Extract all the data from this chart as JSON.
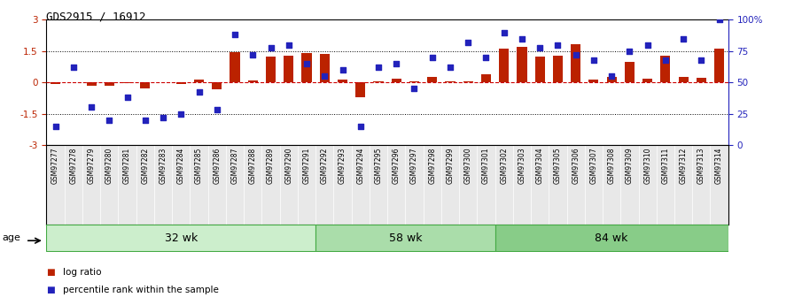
{
  "title": "GDS2915 / 16912",
  "samples": [
    "GSM97277",
    "GSM97278",
    "GSM97279",
    "GSM97280",
    "GSM97281",
    "GSM97282",
    "GSM97283",
    "GSM97284",
    "GSM97285",
    "GSM97286",
    "GSM97287",
    "GSM97288",
    "GSM97289",
    "GSM97290",
    "GSM97291",
    "GSM97292",
    "GSM97293",
    "GSM97294",
    "GSM97295",
    "GSM97296",
    "GSM97297",
    "GSM97298",
    "GSM97299",
    "GSM97300",
    "GSM97301",
    "GSM97302",
    "GSM97303",
    "GSM97304",
    "GSM97305",
    "GSM97306",
    "GSM97307",
    "GSM97308",
    "GSM97309",
    "GSM97310",
    "GSM97311",
    "GSM97312",
    "GSM97313",
    "GSM97314"
  ],
  "log_ratio": [
    -0.08,
    0.0,
    -0.15,
    -0.18,
    -0.05,
    -0.28,
    0.02,
    -0.08,
    0.12,
    -0.32,
    1.45,
    0.1,
    1.25,
    1.3,
    1.4,
    1.35,
    0.12,
    -0.72,
    0.06,
    0.18,
    0.06,
    0.28,
    0.04,
    0.06,
    0.38,
    1.6,
    1.72,
    1.25,
    1.3,
    1.82,
    0.12,
    0.26,
    1.0,
    0.16,
    1.3,
    0.24,
    0.22,
    1.62
  ],
  "percentile": [
    15,
    62,
    30,
    20,
    38,
    20,
    22,
    25,
    42,
    28,
    88,
    72,
    78,
    80,
    65,
    55,
    60,
    15,
    62,
    65,
    45,
    70,
    62,
    82,
    70,
    90,
    85,
    78,
    80,
    72,
    68,
    55,
    75,
    80,
    68,
    85,
    68,
    100
  ],
  "groups": [
    {
      "label": "32 wk",
      "start": 0,
      "end": 15
    },
    {
      "label": "58 wk",
      "start": 15,
      "end": 25
    },
    {
      "label": "84 wk",
      "start": 25,
      "end": 38
    }
  ],
  "group_colors": [
    "#cceecc",
    "#aaddaa",
    "#88cc88"
  ],
  "group_edge_color": "#44aa44",
  "ylim_left": [
    -3,
    3
  ],
  "yticks_left": [
    -3,
    -1.5,
    0,
    1.5,
    3
  ],
  "yticks_right": [
    0,
    25,
    50,
    75,
    100
  ],
  "hlines": [
    1.5,
    -1.5
  ],
  "bar_color": "#bb2200",
  "scatter_color": "#2222bb",
  "zero_line_color": "#cc0000",
  "bg_color": "#ffffff",
  "label_bg_color": "#e8e8e8",
  "title_fontsize": 9,
  "tick_fontsize": 7.5,
  "label_fontsize": 5.5,
  "group_fontsize": 9,
  "legend_fontsize": 7.5,
  "age_label": "age",
  "legend_log_ratio": "log ratio",
  "legend_percentile": "percentile rank within the sample"
}
